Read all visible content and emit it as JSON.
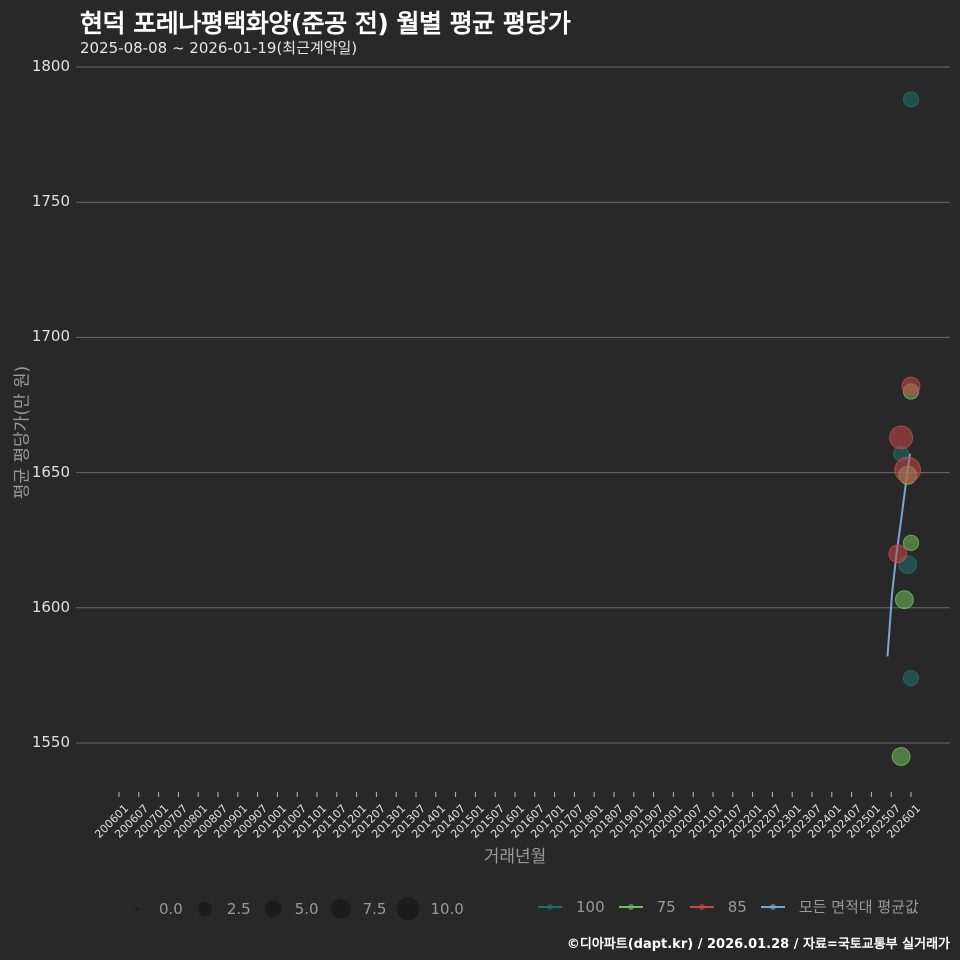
{
  "header": {
    "title": "현덕 포레나평택화양(준공 전) 월별 평균 평당가",
    "subtitle": "2025-08-08 ~ 2026-01-19(최근계약일)"
  },
  "footer": "©디아파트(dapt.kr) / 2026.01.28 / 자료=국토교통부 실거래가",
  "chart_data": {
    "type": "scatter",
    "title": "현덕 포레나평택화양(준공 전) 월별 평균 평당가",
    "subtitle": "2025-08-08 ~ 2026-01-19(최근계약일)",
    "xlabel": "거래년월",
    "ylabel": "평균 평당가(만 원)",
    "ylim": [
      1535,
      1805
    ],
    "yticks": [
      1550,
      1600,
      1650,
      1700,
      1750,
      1800
    ],
    "xticks": [
      "200601",
      "200607",
      "200701",
      "200707",
      "200801",
      "200807",
      "200901",
      "200907",
      "201001",
      "201007",
      "201101",
      "201107",
      "201201",
      "201207",
      "201301",
      "201307",
      "201401",
      "201407",
      "201501",
      "201507",
      "201601",
      "201607",
      "201701",
      "201707",
      "201801",
      "201807",
      "201901",
      "201907",
      "202001",
      "202007",
      "202101",
      "202107",
      "202201",
      "202207",
      "202301",
      "202307",
      "202401",
      "202407",
      "202501",
      "202507",
      "202601"
    ],
    "grid": "horizontal",
    "legend_position": "bottom",
    "size_legend": {
      "title": "",
      "values": [
        "0.0",
        "2.5",
        "5.0",
        "7.5",
        "10.0"
      ]
    },
    "series": [
      {
        "name": "100",
        "color": "#1f6f6a",
        "points": [
          {
            "x": "202601",
            "y": 1788,
            "size": 2
          },
          {
            "x": "202510",
            "y": 1657,
            "size": 2
          },
          {
            "x": "202512",
            "y": 1616,
            "size": 3
          },
          {
            "x": "202601",
            "y": 1574,
            "size": 2
          }
        ]
      },
      {
        "name": "75",
        "color": "#6fbf5a",
        "points": [
          {
            "x": "202601",
            "y": 1680,
            "size": 2
          },
          {
            "x": "202512",
            "y": 1649,
            "size": 3
          },
          {
            "x": "202601",
            "y": 1624,
            "size": 2
          },
          {
            "x": "202511",
            "y": 1603,
            "size": 3
          },
          {
            "x": "202510",
            "y": 1545,
            "size": 3
          }
        ]
      },
      {
        "name": "85",
        "color": "#c8474a",
        "points": [
          {
            "x": "202601",
            "y": 1682,
            "size": 3
          },
          {
            "x": "202510",
            "y": 1663,
            "size": 5
          },
          {
            "x": "202512",
            "y": 1651,
            "size": 6
          },
          {
            "x": "202509",
            "y": 1620,
            "size": 3
          }
        ]
      },
      {
        "name": "모든 면적대 평균값",
        "color": "#7fa3d1",
        "type": "line",
        "points": [
          {
            "x": "202508",
            "y": 1582
          },
          {
            "x": "202509",
            "y": 1605
          },
          {
            "x": "202510",
            "y": 1620
          },
          {
            "x": "202511",
            "y": 1632
          },
          {
            "x": "202512",
            "y": 1645
          },
          {
            "x": "202601",
            "y": 1657
          }
        ]
      }
    ]
  },
  "legend": {
    "sizes": [
      "0.0",
      "2.5",
      "5.0",
      "7.5",
      "10.0"
    ],
    "series": [
      {
        "label": "100",
        "color": "#1f6f6a"
      },
      {
        "label": "75",
        "color": "#6fbf5a"
      },
      {
        "label": "85",
        "color": "#c8474a"
      },
      {
        "label": "모든 면적대 평균값",
        "color": "#7fa3d1"
      }
    ]
  }
}
